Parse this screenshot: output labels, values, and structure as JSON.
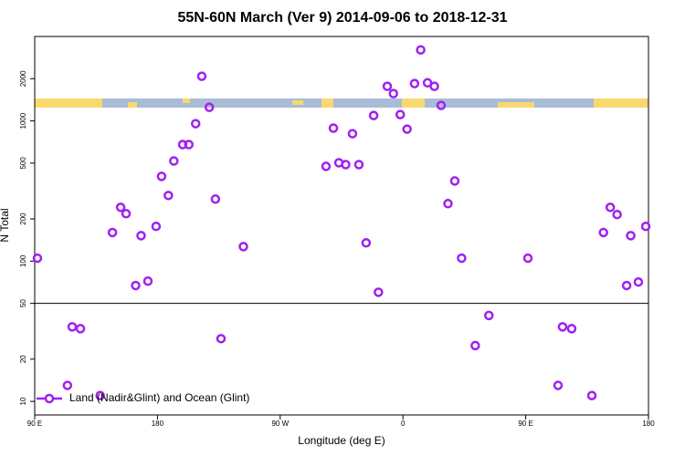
{
  "chart_data": {
    "type": "scatter",
    "title": "55N-60N March (Ver 9)   2014-09-06 to 2018-12-31",
    "x_label": "Longitude (deg E)",
    "y_label": "N Total",
    "log_y": true,
    "legend_position": "lower left",
    "reference_line": 50,
    "xlim": [
      90,
      540
    ],
    "ylim": [
      8,
      4000
    ],
    "xticks": [
      {
        "value": 90,
        "label": "90 E"
      },
      180,
      {
        "value": 270,
        "label": "90 W"
      },
      {
        "value": 360,
        "label": "0"
      },
      {
        "value": 450,
        "label": "90 E"
      },
      {
        "value": 540,
        "label": "180"
      }
    ],
    "yticks": [
      10,
      20,
      50,
      100,
      200,
      500,
      1000,
      2000
    ],
    "series": [
      {
        "name": "Land (Nadir&Glint) and Ocean (Glint)",
        "color": "#a020f0",
        "x": [
          92,
          114,
          117.5,
          123.5,
          138,
          147,
          153,
          157,
          164,
          168,
          173,
          179,
          183,
          188,
          192,
          198.5,
          203,
          208,
          212.5,
          218,
          222.5,
          226.6,
          243,
          303.6,
          309,
          313,
          318,
          323,
          327.7,
          333,
          338.5,
          342,
          348.5,
          353,
          358,
          363,
          368.5,
          373,
          378,
          383,
          388,
          393,
          398,
          403,
          413,
          423,
          451.6,
          473.7,
          477,
          483.7,
          498.5,
          507,
          512,
          517,
          524,
          527,
          532.6,
          538
        ],
        "values": [
          105,
          13,
          34,
          33,
          11,
          160,
          242,
          218,
          67,
          152,
          72,
          177,
          402,
          294,
          518,
          678,
          678,
          956,
          2080,
          1250,
          277,
          28,
          127,
          474,
          888,
          503,
          488,
          811,
          488,
          135,
          1093,
          60,
          1765,
          1566,
          1110,
          874,
          1846,
          3210,
          1870,
          1765,
          1290,
          257,
          373,
          105,
          25,
          41,
          105,
          13,
          34,
          33,
          11,
          160,
          242,
          215,
          67,
          152,
          71,
          177
        ]
      }
    ]
  }
}
